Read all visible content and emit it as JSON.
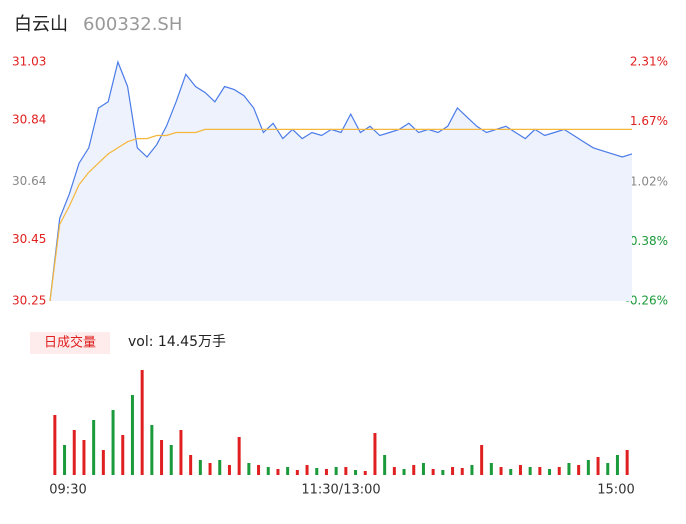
{
  "header": {
    "name": "白云山",
    "code": "600332.SH"
  },
  "chart_data": [
    {
      "type": "line",
      "xlim": [
        0,
        240
      ],
      "ylim": [
        30.25,
        31.03
      ],
      "yticks": [
        30.25,
        30.45,
        30.64,
        30.84,
        31.03
      ],
      "ytick_colors": [
        "#e02020",
        "#e02020",
        "#888888",
        "#e02020",
        "#e02020"
      ],
      "y2lim": [
        -0.26,
        2.31
      ],
      "y2ticks": [
        {
          "value": -0.26,
          "label": "-0.26%"
        },
        {
          "value": 0.38,
          "label": "0.38%"
        },
        {
          "value": 1.02,
          "label": "1.02%"
        },
        {
          "value": 1.67,
          "label": "1.67%"
        },
        {
          "value": 2.31,
          "label": "2.31%"
        }
      ],
      "y2tick_colors": [
        "#1a9a3a",
        "#1a9a3a",
        "#888888",
        "#e02020",
        "#e02020"
      ],
      "x": [
        0,
        4,
        8,
        12,
        16,
        20,
        24,
        28,
        32,
        36,
        40,
        44,
        48,
        52,
        56,
        60,
        64,
        68,
        72,
        76,
        80,
        84,
        88,
        92,
        96,
        100,
        104,
        108,
        112,
        116,
        120,
        124,
        128,
        132,
        136,
        140,
        144,
        148,
        152,
        156,
        160,
        164,
        168,
        172,
        176,
        180,
        184,
        188,
        192,
        196,
        200,
        204,
        208,
        212,
        216,
        220,
        224,
        228,
        232,
        236,
        240
      ],
      "series": [
        {
          "color": "#4a7be8",
          "fill": "#eef2fc",
          "values": [
            30.25,
            30.52,
            30.6,
            30.7,
            30.75,
            30.88,
            30.9,
            31.03,
            30.95,
            30.75,
            30.72,
            30.76,
            30.82,
            30.9,
            30.99,
            30.95,
            30.93,
            30.9,
            30.95,
            30.94,
            30.92,
            30.88,
            30.8,
            30.83,
            30.78,
            30.81,
            30.78,
            30.8,
            30.79,
            30.81,
            30.8,
            30.86,
            30.8,
            30.82,
            30.79,
            30.8,
            30.81,
            30.83,
            30.8,
            30.81,
            30.8,
            30.82,
            30.88,
            30.85,
            30.82,
            30.8,
            30.81,
            30.82,
            30.8,
            30.78,
            30.81,
            30.79,
            30.8,
            30.81,
            30.79,
            30.77,
            30.75,
            30.74,
            30.73,
            30.72,
            30.73
          ]
        },
        {
          "color": "#f5b73b",
          "values": [
            30.25,
            30.5,
            30.56,
            30.63,
            30.67,
            30.7,
            30.73,
            30.75,
            30.77,
            30.78,
            30.78,
            30.79,
            30.79,
            30.8,
            30.8,
            30.8,
            30.81,
            30.81,
            30.81,
            30.81,
            30.81,
            30.81,
            30.81,
            30.81,
            30.81,
            30.81,
            30.81,
            30.81,
            30.81,
            30.81,
            30.81,
            30.81,
            30.81,
            30.81,
            30.81,
            30.81,
            30.81,
            30.81,
            30.81,
            30.81,
            30.81,
            30.81,
            30.81,
            30.81,
            30.81,
            30.81,
            30.81,
            30.81,
            30.81,
            30.81,
            30.81,
            30.81,
            30.81,
            30.81,
            30.81,
            30.81,
            30.81,
            30.81,
            30.81,
            30.81,
            30.81
          ]
        }
      ]
    },
    {
      "type": "bar",
      "title": "日成交量",
      "vol_label": "vol: 14.45万手",
      "xlim": [
        0,
        240
      ],
      "ylim": [
        0,
        110
      ],
      "xticks": [
        {
          "value": 0,
          "label": "09:30"
        },
        {
          "value": 120,
          "label": "11:30/13:00"
        },
        {
          "value": 240,
          "label": "15:00"
        }
      ],
      "x": [
        2,
        6,
        10,
        14,
        18,
        22,
        26,
        30,
        34,
        38,
        42,
        46,
        50,
        54,
        58,
        62,
        66,
        70,
        74,
        78,
        82,
        86,
        90,
        94,
        98,
        102,
        106,
        110,
        114,
        118,
        122,
        126,
        130,
        134,
        138,
        142,
        146,
        150,
        154,
        158,
        162,
        166,
        170,
        174,
        178,
        182,
        186,
        190,
        194,
        198,
        202,
        206,
        210,
        214,
        218,
        222,
        226,
        230,
        234,
        238
      ],
      "values": [
        60,
        30,
        45,
        35,
        55,
        25,
        65,
        40,
        80,
        105,
        50,
        35,
        30,
        45,
        20,
        15,
        12,
        15,
        10,
        38,
        12,
        10,
        8,
        6,
        8,
        5,
        10,
        7,
        6,
        8,
        8,
        5,
        4,
        42,
        20,
        8,
        6,
        10,
        12,
        6,
        5,
        8,
        7,
        10,
        30,
        12,
        8,
        6,
        10,
        8,
        8,
        6,
        8,
        12,
        10,
        15,
        18,
        12,
        20,
        25
      ],
      "bar_colors": [
        "#e02020",
        "#1a9a3a",
        "#e02020",
        "#e02020",
        "#1a9a3a",
        "#e02020",
        "#1a9a3a",
        "#e02020",
        "#1a9a3a",
        "#e02020",
        "#1a9a3a",
        "#e02020",
        "#1a9a3a",
        "#e02020",
        "#e02020",
        "#1a9a3a",
        "#e02020",
        "#1a9a3a",
        "#e02020",
        "#e02020",
        "#1a9a3a",
        "#e02020",
        "#1a9a3a",
        "#e02020",
        "#1a9a3a",
        "#e02020",
        "#e02020",
        "#1a9a3a",
        "#e02020",
        "#1a9a3a",
        "#e02020",
        "#1a9a3a",
        "#e02020",
        "#e02020",
        "#1a9a3a",
        "#e02020",
        "#1a9a3a",
        "#e02020",
        "#1a9a3a",
        "#e02020",
        "#1a9a3a",
        "#e02020",
        "#e02020",
        "#1a9a3a",
        "#e02020",
        "#1a9a3a",
        "#e02020",
        "#1a9a3a",
        "#e02020",
        "#1a9a3a",
        "#e02020",
        "#1a9a3a",
        "#e02020",
        "#1a9a3a",
        "#e02020",
        "#1a9a3a",
        "#e02020",
        "#1a9a3a",
        "#1a9a3a",
        "#e02020"
      ]
    }
  ]
}
